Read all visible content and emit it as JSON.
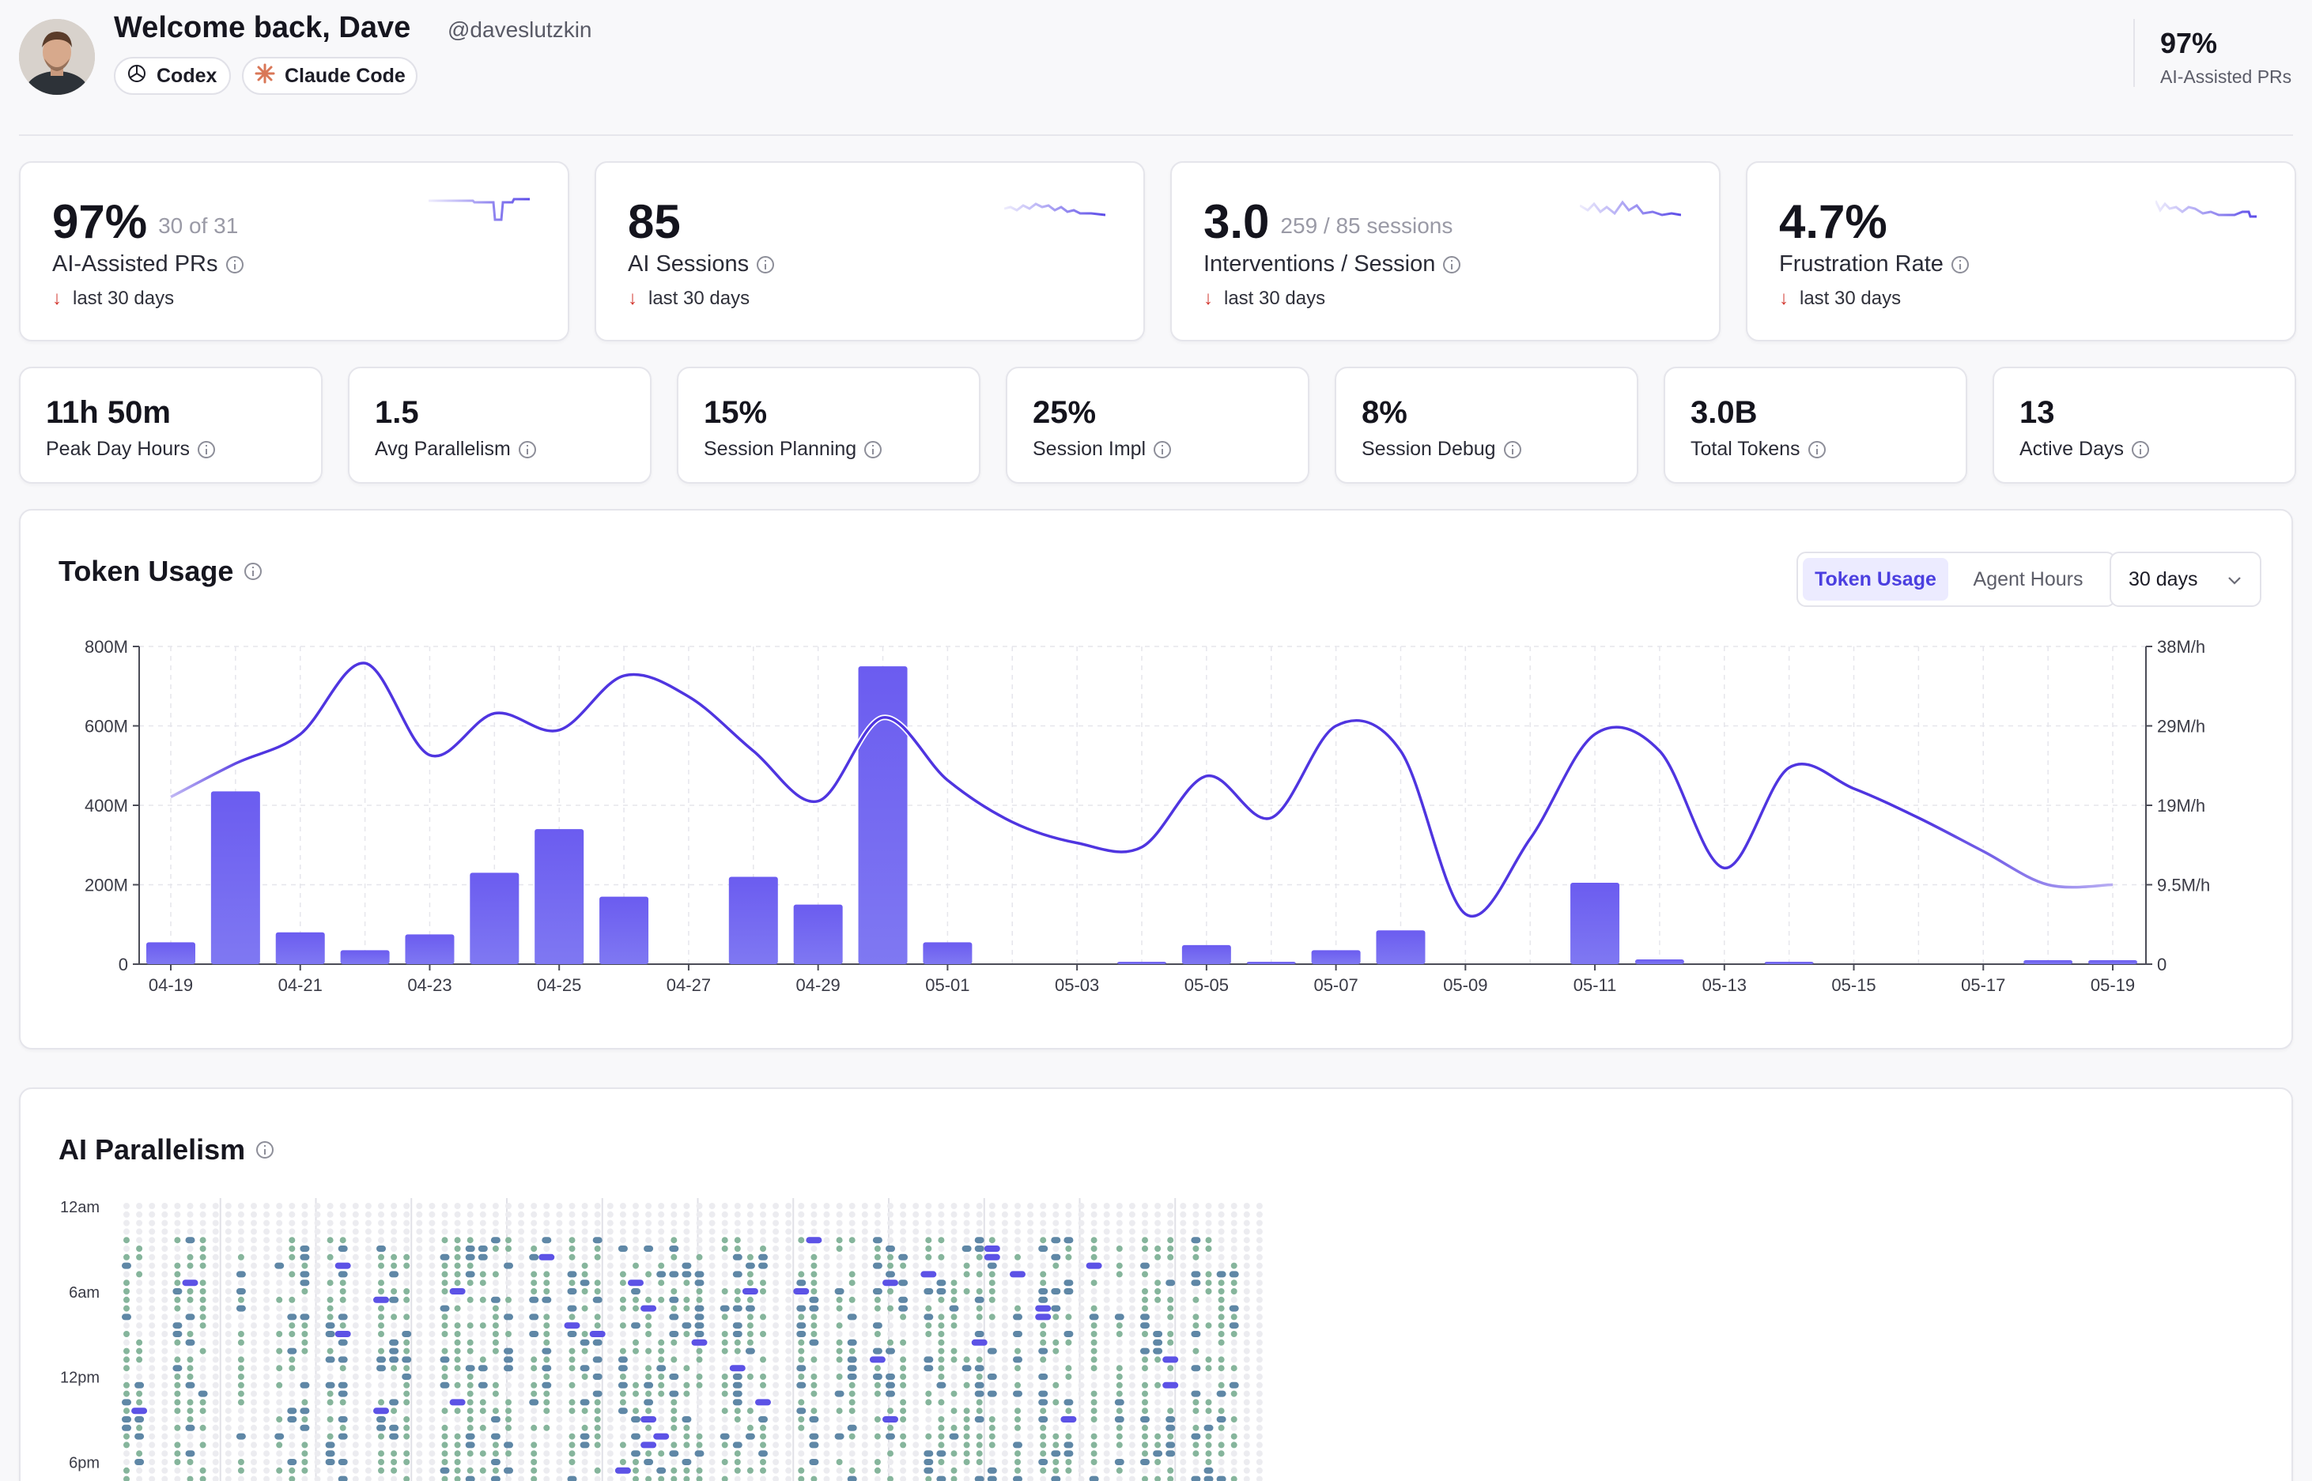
{
  "header": {
    "welcome": "Welcome back, Dave",
    "handle": "@daveslutzkin",
    "tools": [
      {
        "label": "Codex",
        "icon": "openai-icon"
      },
      {
        "label": "Claude Code",
        "icon": "claude-icon"
      }
    ],
    "stat": {
      "value": "97%",
      "label": "AI-Assisted PRs"
    }
  },
  "kpis": [
    {
      "value": "97%",
      "sub": "30 of 31",
      "label": "AI-Assisted PRs",
      "trend": "last 30 days",
      "trend_direction": "down"
    },
    {
      "value": "85",
      "sub": "",
      "label": "AI Sessions",
      "trend": "last 30 days",
      "trend_direction": "down"
    },
    {
      "value": "3.0",
      "sub": "259 / 85 sessions",
      "label": "Interventions / Session",
      "trend": "last 30 days",
      "trend_direction": "down"
    },
    {
      "value": "4.7%",
      "sub": "",
      "label": "Frustration Rate",
      "trend": "last 30 days",
      "trend_direction": "down"
    }
  ],
  "stats": [
    {
      "value": "11h 50m",
      "label": "Peak Day Hours"
    },
    {
      "value": "1.5",
      "label": "Avg Parallelism"
    },
    {
      "value": "15%",
      "label": "Session Planning"
    },
    {
      "value": "25%",
      "label": "Session Impl"
    },
    {
      "value": "8%",
      "label": "Session Debug"
    },
    {
      "value": "3.0B",
      "label": "Total Tokens"
    },
    {
      "value": "13",
      "label": "Active Days"
    }
  ],
  "token_usage": {
    "title": "Token Usage",
    "toggle": {
      "options": [
        "Token Usage",
        "Agent Hours"
      ],
      "selected": "Token Usage"
    },
    "range": "30 days"
  },
  "parallelism": {
    "title": "AI Parallelism",
    "y_labels": [
      "12am",
      "6am",
      "12pm",
      "6pm"
    ]
  },
  "colors": {
    "accent": "#5b4be8",
    "bar": "#6d63ef",
    "line": "#4f35e0",
    "dot_green": "#86b59c",
    "dot_blue": "#5f87a6",
    "dot_purple": "#5c52e6",
    "trend_down": "#d2342c"
  },
  "chart_data": {
    "type": "bar",
    "title": "Token Usage",
    "categories": [
      "04-19",
      "04-20",
      "04-21",
      "04-22",
      "04-23",
      "04-24",
      "04-25",
      "04-26",
      "04-27",
      "04-28",
      "04-29",
      "04-30",
      "05-01",
      "05-02",
      "05-03",
      "05-04",
      "05-05",
      "05-06",
      "05-07",
      "05-08",
      "05-09",
      "05-10",
      "05-11",
      "05-12",
      "05-13",
      "05-14",
      "05-15",
      "05-16",
      "05-17",
      "05-18",
      "05-19"
    ],
    "x_tick_labels": [
      "04-19",
      "04-21",
      "04-23",
      "04-25",
      "04-27",
      "04-29",
      "05-01",
      "05-03",
      "05-05",
      "05-07",
      "05-09",
      "05-11",
      "05-13",
      "05-15",
      "05-17",
      "05-19"
    ],
    "series": [
      {
        "axis": "left",
        "kind": "bar",
        "values": [
          55,
          435,
          80,
          35,
          75,
          230,
          340,
          170,
          0,
          220,
          150,
          750,
          55,
          0,
          0,
          5,
          48,
          5,
          35,
          85,
          0,
          0,
          205,
          12,
          0,
          2,
          0,
          0,
          0,
          10,
          10
        ]
      },
      {
        "axis": "right",
        "kind": "line",
        "values": [
          20,
          24,
          27.5,
          36,
          25,
          30,
          28,
          34.5,
          32,
          25.5,
          19.5,
          29.5,
          22,
          17,
          14.5,
          14,
          22.5,
          17.5,
          28.5,
          25.5,
          6,
          15,
          27.5,
          25.5,
          11.5,
          23.5,
          21,
          17.5,
          13.5,
          9.5,
          9.5
        ]
      }
    ],
    "left_axis": {
      "ticks": [
        "0",
        "200M",
        "400M",
        "600M",
        "800M"
      ],
      "ylim": [
        0,
        800
      ]
    },
    "right_axis": {
      "ticks": [
        "0",
        "9.5M/h",
        "19M/h",
        "29M/h",
        "38M/h"
      ],
      "ylim": [
        0,
        38
      ]
    },
    "grid": true
  }
}
